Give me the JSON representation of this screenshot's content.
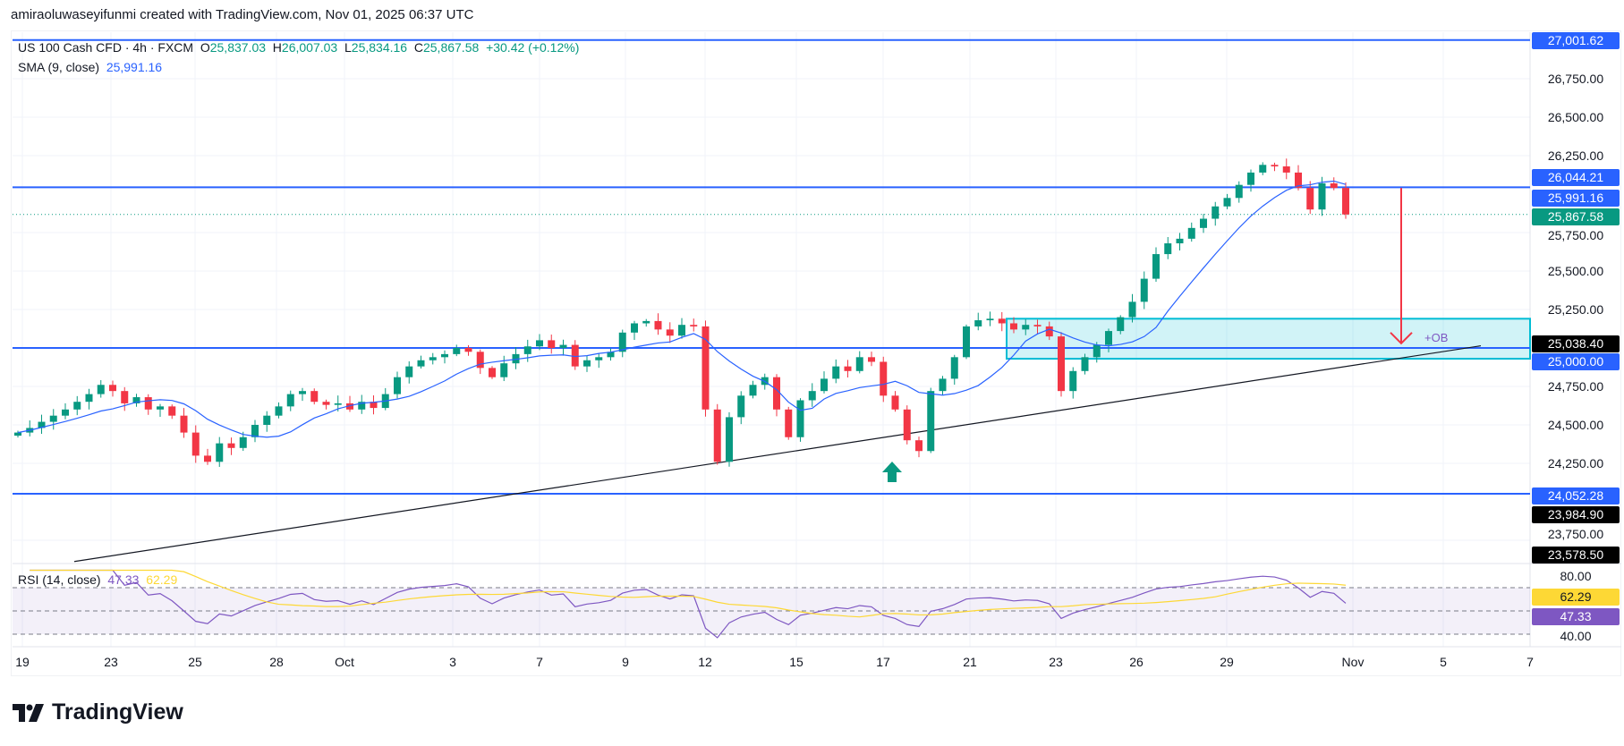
{
  "credit": "amiraoluwaseyifunmi created with TradingView.com, Nov 01, 2025 06:37 UTC",
  "symbol": {
    "name": "US 100 Cash CFD · 4h · FXCM",
    "o": "25,837.03",
    "h": "26,007.03",
    "l": "25,834.16",
    "c": "25,867.58",
    "change": "+30.42 (+0.12%)"
  },
  "sma": {
    "label": "SMA (9, close)",
    "value": "25,991.16"
  },
  "rsi": {
    "label": "RSI (14, close)",
    "value": "47.33",
    "ma": "62.29"
  },
  "logo": {
    "text": "TradingView"
  },
  "colors": {
    "up": "#089981",
    "down": "#f23645",
    "level": "#2962ff",
    "sma": "#2962ff",
    "rsi": "#7e57c2",
    "rsi_ma": "#fdd835",
    "zone": "#00bcd4",
    "arrow": "#f23645"
  },
  "chart_data": {
    "type": "candlestick",
    "timeframe": "4h",
    "x_ticks": [
      "19",
      "23",
      "25",
      "28",
      "Oct",
      "3",
      "7",
      "9",
      "12",
      "15",
      "17",
      "21",
      "23",
      "26",
      "29",
      "Nov",
      "5",
      "7"
    ],
    "y_ticks": [
      "26,750.00",
      "26,500.00",
      "26,250.00",
      "25,750.00",
      "25,500.00",
      "25,250.00",
      "24,750.00",
      "24,500.00",
      "24,250.00",
      "23,750.00"
    ],
    "ylim": [
      23600,
      27050
    ],
    "grid": true,
    "closes": [
      24450,
      24480,
      24520,
      24560,
      24600,
      24650,
      24700,
      24760,
      24720,
      24640,
      24680,
      24600,
      24620,
      24560,
      24450,
      24300,
      24260,
      24380,
      24350,
      24420,
      24500,
      24560,
      24620,
      24700,
      24720,
      24650,
      24630,
      24640,
      24600,
      24650,
      24610,
      24700,
      24810,
      24880,
      24920,
      24940,
      24960,
      25000,
      24975,
      24870,
      24810,
      24900,
      24960,
      25010,
      25050,
      25000,
      25020,
      24880,
      24920,
      24940,
      24975,
      25100,
      25160,
      25175,
      25120,
      25080,
      25150,
      25140,
      24600,
      24260,
      24550,
      24690,
      24760,
      24810,
      24600,
      24420,
      24660,
      24720,
      24800,
      24880,
      24850,
      24940,
      24910,
      24690,
      24600,
      24400,
      24330,
      24720,
      24800,
      24940,
      25140,
      25180,
      25190,
      25160,
      25120,
      25150,
      25140,
      25075,
      24720,
      24850,
      24940,
      25020,
      25110,
      25200,
      25300,
      25450,
      25610,
      25680,
      25710,
      25780,
      25840,
      25920,
      25975,
      26060,
      26140,
      26190,
      26180,
      26140,
      26040,
      25900,
      26070,
      26040,
      25867.58
    ],
    "levels": [
      27001.62,
      26044.21,
      25000.0,
      24052.28
    ],
    "price_labels": [
      {
        "text": "27,001.62",
        "kind": "level"
      },
      {
        "text": "26,044.21",
        "kind": "level"
      },
      {
        "text": "25,991.16",
        "kind": "sma"
      },
      {
        "text": "25,867.58",
        "kind": "last"
      },
      {
        "text": "25,038.40",
        "kind": "marker"
      },
      {
        "text": "25,000.00",
        "kind": "level"
      },
      {
        "text": "24,052.28",
        "kind": "level"
      },
      {
        "text": "23,984.90",
        "kind": "marker"
      },
      {
        "text": "23,578.50",
        "kind": "marker"
      }
    ],
    "last_price": 25867.58,
    "order_block": {
      "label": "+OB",
      "top": 25190,
      "bottom": 24930
    },
    "trendline": {
      "from": 23612,
      "to": 25014
    },
    "target_arrow": {
      "from": 26040,
      "to": 25030
    },
    "rsi_pane": {
      "ticks": [
        "80.00",
        "40.00"
      ],
      "upper": 70,
      "middle": 50,
      "lower": 30,
      "labels": [
        {
          "text": "62.29",
          "kind": "ma"
        },
        {
          "text": "47.33",
          "kind": "rsi"
        }
      ]
    }
  }
}
